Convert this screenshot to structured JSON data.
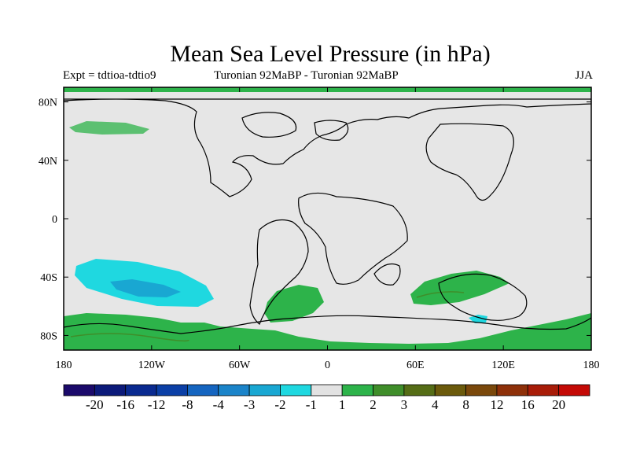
{
  "title": "Mean Sea Level Pressure (in hPa)",
  "subtitle_left": "Expt = tdtioa-tdtio9",
  "subtitle_center": "Turonian  92MaBP - Turonian  92MaBP",
  "subtitle_right": "JJA",
  "axes": {
    "lon_ticks": [
      "180",
      "120W",
      "60W",
      "0",
      "60E",
      "120E",
      "180"
    ],
    "lat_ticks": [
      "80N",
      "40N",
      "0",
      "40S",
      "80S"
    ]
  },
  "colorbar": {
    "labels": [
      "-20",
      "-16",
      "-12",
      "-8",
      "-4",
      "-3",
      "-2",
      "-1",
      "1",
      "2",
      "3",
      "4",
      "8",
      "12",
      "16",
      "20"
    ],
    "colors": [
      "#1b0a6b",
      "#0c1a7a",
      "#0a2a90",
      "#0b3fa6",
      "#1565c0",
      "#1b84c9",
      "#19a7d2",
      "#1fd8e0",
      "#e2e2e2",
      "#2db34a",
      "#3f8e2a",
      "#556d16",
      "#6b5a0c",
      "#7a480b",
      "#8e3009",
      "#a81c08",
      "#c40a06"
    ]
  },
  "colors": {
    "ocean": "#e6e6e6",
    "positive": "#2db34a",
    "neg_light": "#1fd8e0",
    "neg_mid": "#19a7d2"
  }
}
